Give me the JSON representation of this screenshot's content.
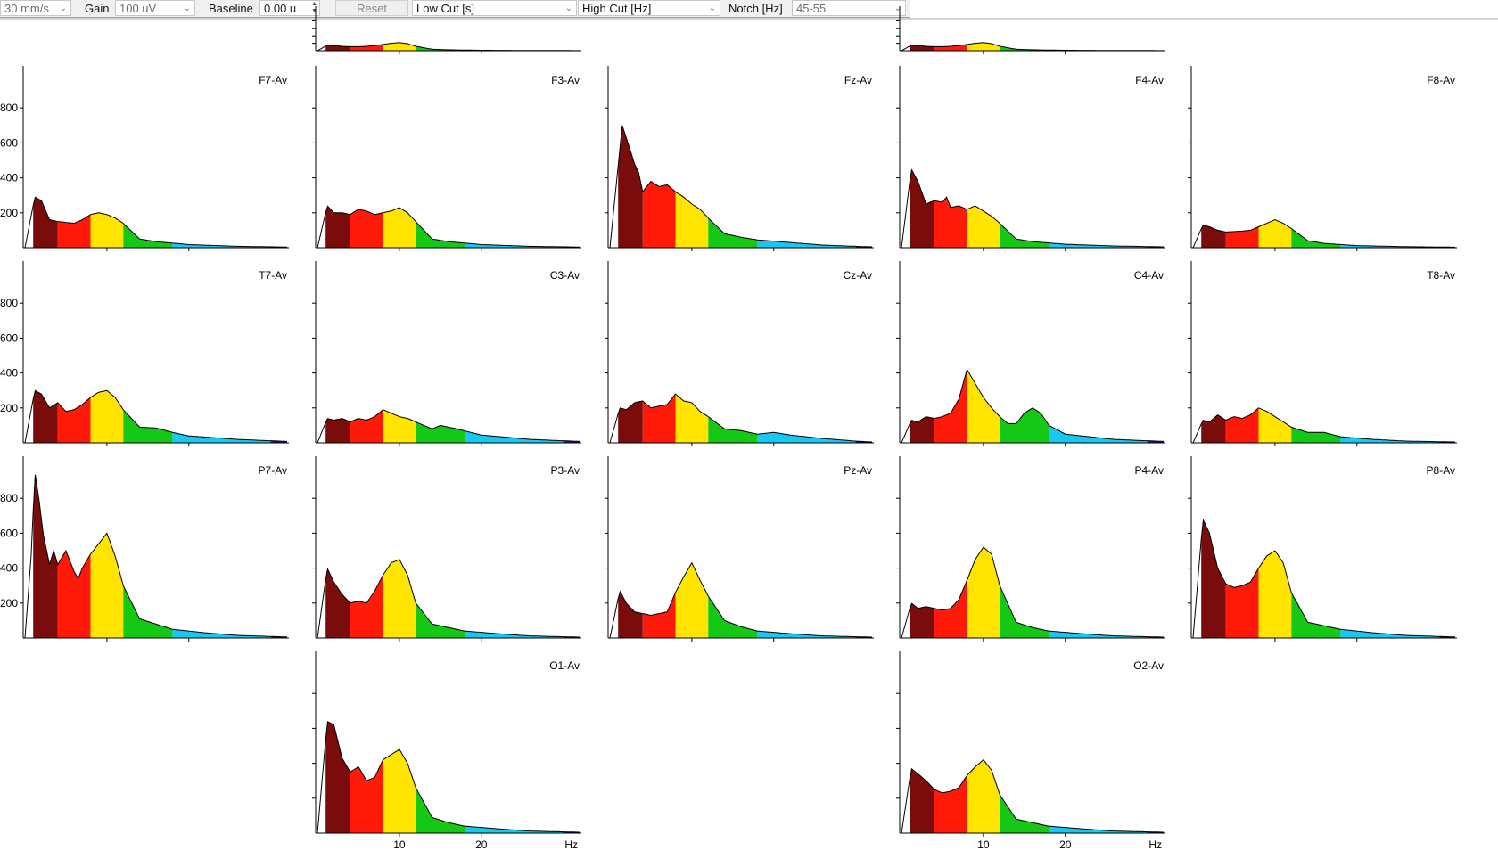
{
  "toolbar": {
    "speed": "30 mm/s",
    "gain_label": "Gain",
    "gain_value": "100 uV",
    "baseline_label": "Baseline",
    "baseline_value": "0.00 u",
    "reset_label": "Reset",
    "lowcut_label": "Low Cut [s]",
    "highcut_label": "High Cut [Hz]",
    "notch_label": "Notch [Hz]",
    "notch_value": "45-55"
  },
  "bands": {
    "delta": "#7a0c0c",
    "theta": "#ff1a0a",
    "alpha": "#ffe400",
    "beta1": "#16c816",
    "beta2": "#18c8f0",
    "gamma": "#1a1aa0"
  },
  "axis": {
    "y_ticks": [
      "200",
      "400",
      "600",
      "800"
    ],
    "x_ticks": [
      "10",
      "20"
    ],
    "x_unit": "Hz"
  },
  "channels": [
    {
      "label": "F7-Av",
      "curve": [
        [
          0,
          0
        ],
        [
          1.2,
          290
        ],
        [
          2,
          270
        ],
        [
          3,
          160
        ],
        [
          4,
          150
        ],
        [
          6,
          140
        ],
        [
          7,
          160
        ],
        [
          8,
          190
        ],
        [
          9,
          200
        ],
        [
          10,
          190
        ],
        [
          11,
          170
        ],
        [
          12,
          140
        ],
        [
          14,
          50
        ],
        [
          16,
          35
        ],
        [
          20,
          18
        ],
        [
          26,
          8
        ],
        [
          32,
          4
        ]
      ]
    },
    {
      "label": "F3-Av",
      "curve": [
        [
          0,
          0
        ],
        [
          1.2,
          240
        ],
        [
          2,
          200
        ],
        [
          3,
          200
        ],
        [
          4,
          190
        ],
        [
          5,
          220
        ],
        [
          6,
          210
        ],
        [
          7,
          190
        ],
        [
          8,
          200
        ],
        [
          9,
          210
        ],
        [
          10,
          230
        ],
        [
          11,
          200
        ],
        [
          12,
          150
        ],
        [
          14,
          50
        ],
        [
          16,
          35
        ],
        [
          20,
          18
        ],
        [
          26,
          8
        ],
        [
          32,
          4
        ]
      ]
    },
    {
      "label": "Fz-Av",
      "curve": [
        [
          0,
          0
        ],
        [
          1.5,
          700
        ],
        [
          2.2,
          600
        ],
        [
          3,
          480
        ],
        [
          3.5,
          430
        ],
        [
          4,
          320
        ],
        [
          5,
          380
        ],
        [
          6,
          350
        ],
        [
          7,
          360
        ],
        [
          8,
          320
        ],
        [
          9,
          290
        ],
        [
          10,
          250
        ],
        [
          11,
          220
        ],
        [
          12,
          170
        ],
        [
          14,
          80
        ],
        [
          16,
          60
        ],
        [
          18,
          45
        ],
        [
          22,
          30
        ],
        [
          26,
          15
        ],
        [
          30,
          8
        ],
        [
          32,
          5
        ]
      ]
    },
    {
      "label": "F4-Av",
      "curve": [
        [
          0,
          0
        ],
        [
          1.2,
          450
        ],
        [
          2,
          380
        ],
        [
          3,
          250
        ],
        [
          4,
          270
        ],
        [
          5,
          260
        ],
        [
          5.5,
          290
        ],
        [
          6,
          230
        ],
        [
          7,
          240
        ],
        [
          8,
          220
        ],
        [
          9,
          240
        ],
        [
          10,
          210
        ],
        [
          11,
          180
        ],
        [
          12,
          140
        ],
        [
          14,
          50
        ],
        [
          16,
          35
        ],
        [
          20,
          20
        ],
        [
          26,
          10
        ],
        [
          32,
          5
        ]
      ]
    },
    {
      "label": "F8-Av",
      "curve": [
        [
          0,
          0
        ],
        [
          1.2,
          130
        ],
        [
          2,
          120
        ],
        [
          3,
          100
        ],
        [
          4,
          90
        ],
        [
          6,
          95
        ],
        [
          7,
          100
        ],
        [
          8,
          120
        ],
        [
          9,
          140
        ],
        [
          10,
          160
        ],
        [
          11,
          140
        ],
        [
          12,
          110
        ],
        [
          14,
          40
        ],
        [
          16,
          25
        ],
        [
          20,
          12
        ],
        [
          26,
          6
        ],
        [
          32,
          3
        ]
      ]
    },
    {
      "label": "T7-Av",
      "curve": [
        [
          0,
          0
        ],
        [
          1.2,
          300
        ],
        [
          2,
          280
        ],
        [
          3,
          200
        ],
        [
          4,
          230
        ],
        [
          5,
          180
        ],
        [
          6,
          190
        ],
        [
          7,
          220
        ],
        [
          8,
          260
        ],
        [
          9,
          290
        ],
        [
          10,
          300
        ],
        [
          11,
          260
        ],
        [
          12,
          190
        ],
        [
          14,
          90
        ],
        [
          16,
          85
        ],
        [
          18,
          60
        ],
        [
          20,
          40
        ],
        [
          26,
          20
        ],
        [
          32,
          8
        ]
      ]
    },
    {
      "label": "C3-Av",
      "curve": [
        [
          0,
          0
        ],
        [
          1.2,
          140
        ],
        [
          2,
          130
        ],
        [
          3,
          140
        ],
        [
          4,
          120
        ],
        [
          5,
          140
        ],
        [
          6,
          130
        ],
        [
          7,
          150
        ],
        [
          8,
          190
        ],
        [
          9,
          170
        ],
        [
          10,
          150
        ],
        [
          11,
          140
        ],
        [
          12,
          120
        ],
        [
          14,
          80
        ],
        [
          15,
          100
        ],
        [
          17,
          80
        ],
        [
          20,
          45
        ],
        [
          26,
          20
        ],
        [
          32,
          8
        ]
      ]
    },
    {
      "label": "Cz-Av",
      "curve": [
        [
          0,
          0
        ],
        [
          1.2,
          200
        ],
        [
          2,
          190
        ],
        [
          3,
          230
        ],
        [
          4,
          240
        ],
        [
          5,
          200
        ],
        [
          6,
          210
        ],
        [
          7,
          220
        ],
        [
          8,
          280
        ],
        [
          9,
          240
        ],
        [
          10,
          230
        ],
        [
          11,
          180
        ],
        [
          12,
          150
        ],
        [
          14,
          80
        ],
        [
          16,
          70
        ],
        [
          18,
          50
        ],
        [
          20,
          60
        ],
        [
          22,
          45
        ],
        [
          26,
          25
        ],
        [
          30,
          10
        ],
        [
          32,
          5
        ]
      ]
    },
    {
      "label": "C4-Av",
      "curve": [
        [
          0,
          0
        ],
        [
          1.2,
          130
        ],
        [
          2,
          120
        ],
        [
          3,
          150
        ],
        [
          4,
          140
        ],
        [
          5,
          150
        ],
        [
          6,
          170
        ],
        [
          7,
          250
        ],
        [
          8,
          420
        ],
        [
          9,
          340
        ],
        [
          10,
          260
        ],
        [
          11,
          200
        ],
        [
          12,
          150
        ],
        [
          13,
          110
        ],
        [
          14,
          110
        ],
        [
          15,
          170
        ],
        [
          16,
          200
        ],
        [
          17,
          170
        ],
        [
          18,
          100
        ],
        [
          20,
          50
        ],
        [
          26,
          20
        ],
        [
          32,
          8
        ]
      ]
    },
    {
      "label": "T8-Av",
      "curve": [
        [
          0,
          0
        ],
        [
          1.2,
          130
        ],
        [
          2,
          120
        ],
        [
          3,
          160
        ],
        [
          4,
          130
        ],
        [
          5,
          150
        ],
        [
          6,
          140
        ],
        [
          7,
          160
        ],
        [
          8,
          200
        ],
        [
          9,
          180
        ],
        [
          10,
          150
        ],
        [
          11,
          120
        ],
        [
          12,
          90
        ],
        [
          14,
          60
        ],
        [
          16,
          60
        ],
        [
          18,
          35
        ],
        [
          22,
          20
        ],
        [
          26,
          10
        ],
        [
          32,
          5
        ]
      ]
    },
    {
      "label": "P7-Av",
      "curve": [
        [
          0,
          0
        ],
        [
          0.8,
          500
        ],
        [
          1.2,
          950
        ],
        [
          1.7,
          800
        ],
        [
          2.2,
          600
        ],
        [
          3,
          420
        ],
        [
          3.5,
          500
        ],
        [
          4,
          420
        ],
        [
          5,
          500
        ],
        [
          6,
          380
        ],
        [
          6.5,
          340
        ],
        [
          7,
          400
        ],
        [
          8,
          480
        ],
        [
          9,
          540
        ],
        [
          10,
          600
        ],
        [
          11,
          470
        ],
        [
          12,
          300
        ],
        [
          14,
          110
        ],
        [
          16,
          80
        ],
        [
          18,
          50
        ],
        [
          22,
          30
        ],
        [
          26,
          15
        ],
        [
          32,
          6
        ]
      ]
    },
    {
      "label": "P3-Av",
      "curve": [
        [
          0,
          0
        ],
        [
          1.2,
          400
        ],
        [
          2,
          320
        ],
        [
          3,
          250
        ],
        [
          4,
          200
        ],
        [
          5,
          210
        ],
        [
          6,
          200
        ],
        [
          7,
          270
        ],
        [
          8,
          360
        ],
        [
          9,
          430
        ],
        [
          10,
          450
        ],
        [
          11,
          360
        ],
        [
          12,
          200
        ],
        [
          14,
          80
        ],
        [
          16,
          60
        ],
        [
          18,
          40
        ],
        [
          22,
          25
        ],
        [
          26,
          12
        ],
        [
          32,
          5
        ]
      ]
    },
    {
      "label": "Pz-Av",
      "curve": [
        [
          0,
          0
        ],
        [
          1.2,
          270
        ],
        [
          2,
          200
        ],
        [
          3,
          150
        ],
        [
          4,
          140
        ],
        [
          5,
          130
        ],
        [
          6,
          140
        ],
        [
          7,
          150
        ],
        [
          8,
          260
        ],
        [
          9,
          350
        ],
        [
          10,
          430
        ],
        [
          11,
          330
        ],
        [
          12,
          240
        ],
        [
          14,
          100
        ],
        [
          16,
          65
        ],
        [
          18,
          40
        ],
        [
          22,
          25
        ],
        [
          26,
          12
        ],
        [
          32,
          5
        ]
      ]
    },
    {
      "label": "P4-Av",
      "curve": [
        [
          0,
          0
        ],
        [
          1.2,
          200
        ],
        [
          2,
          170
        ],
        [
          3,
          180
        ],
        [
          4,
          170
        ],
        [
          5,
          160
        ],
        [
          6,
          170
        ],
        [
          7,
          220
        ],
        [
          8,
          330
        ],
        [
          9,
          450
        ],
        [
          10,
          520
        ],
        [
          11,
          480
        ],
        [
          12,
          300
        ],
        [
          14,
          90
        ],
        [
          16,
          60
        ],
        [
          18,
          40
        ],
        [
          22,
          25
        ],
        [
          26,
          12
        ],
        [
          32,
          5
        ]
      ]
    },
    {
      "label": "P8-Av",
      "curve": [
        [
          0,
          0
        ],
        [
          1.2,
          680
        ],
        [
          2,
          600
        ],
        [
          3,
          400
        ],
        [
          4,
          310
        ],
        [
          5,
          290
        ],
        [
          6,
          300
        ],
        [
          7,
          320
        ],
        [
          8,
          400
        ],
        [
          9,
          470
        ],
        [
          10,
          500
        ],
        [
          11,
          430
        ],
        [
          12,
          260
        ],
        [
          14,
          90
        ],
        [
          16,
          70
        ],
        [
          18,
          50
        ],
        [
          22,
          30
        ],
        [
          26,
          15
        ],
        [
          32,
          6
        ]
      ]
    },
    {
      "label": "O1-Av",
      "curve": [
        [
          0,
          0
        ],
        [
          1.2,
          640
        ],
        [
          2,
          620
        ],
        [
          3,
          430
        ],
        [
          4,
          350
        ],
        [
          5,
          380
        ],
        [
          6,
          300
        ],
        [
          7,
          320
        ],
        [
          8,
          420
        ],
        [
          9,
          450
        ],
        [
          10,
          480
        ],
        [
          11,
          400
        ],
        [
          12,
          260
        ],
        [
          14,
          90
        ],
        [
          16,
          60
        ],
        [
          18,
          40
        ],
        [
          22,
          25
        ],
        [
          26,
          12
        ],
        [
          32,
          5
        ]
      ]
    },
    {
      "label": "O2-Av",
      "curve": [
        [
          0,
          0
        ],
        [
          1.2,
          370
        ],
        [
          2,
          340
        ],
        [
          3,
          300
        ],
        [
          4,
          250
        ],
        [
          5,
          230
        ],
        [
          6,
          240
        ],
        [
          7,
          260
        ],
        [
          8,
          330
        ],
        [
          9,
          380
        ],
        [
          10,
          420
        ],
        [
          11,
          360
        ],
        [
          12,
          220
        ],
        [
          14,
          80
        ],
        [
          16,
          60
        ],
        [
          18,
          40
        ],
        [
          22,
          25
        ],
        [
          26,
          12
        ],
        [
          32,
          5
        ]
      ]
    },
    {
      "label": "",
      "curve": [
        [
          0,
          0
        ],
        [
          1.2,
          150
        ],
        [
          2,
          140
        ],
        [
          3,
          120
        ],
        [
          4,
          110
        ],
        [
          5,
          110
        ],
        [
          6,
          120
        ],
        [
          7,
          140
        ],
        [
          8,
          170
        ],
        [
          9,
          200
        ],
        [
          10,
          220
        ],
        [
          11,
          190
        ],
        [
          12,
          120
        ],
        [
          14,
          40
        ],
        [
          16,
          25
        ],
        [
          20,
          12
        ],
        [
          26,
          6
        ],
        [
          32,
          3
        ]
      ]
    },
    {
      "label": "",
      "curve": [
        [
          0,
          0
        ],
        [
          1.2,
          150
        ],
        [
          2,
          140
        ],
        [
          3,
          120
        ],
        [
          4,
          110
        ],
        [
          5,
          110
        ],
        [
          6,
          120
        ],
        [
          7,
          140
        ],
        [
          8,
          170
        ],
        [
          9,
          200
        ],
        [
          10,
          220
        ],
        [
          11,
          190
        ],
        [
          12,
          120
        ],
        [
          14,
          40
        ],
        [
          16,
          25
        ],
        [
          20,
          12
        ],
        [
          26,
          6
        ],
        [
          32,
          3
        ]
      ]
    }
  ]
}
